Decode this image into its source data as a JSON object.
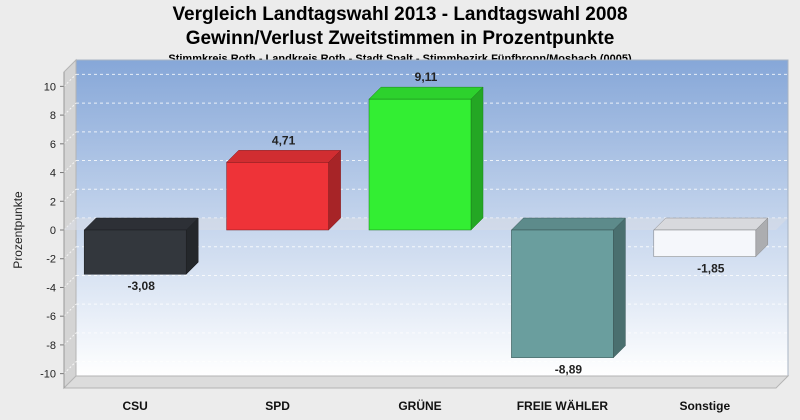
{
  "chart_data": {
    "type": "bar",
    "title": "Vergleich Landtagswahl 2013 - Landtagswahl 2008",
    "subtitle": "Gewinn/Verlust Zweitstimmen in Prozentpunkte",
    "subsubtitle": "Stimmkreis Roth - Landkreis Roth - Stadt Spalt - Stimmbezirk Fünfbronn/Mosbach (0005)",
    "ylabel": "Prozentpunkte",
    "xlabel": "",
    "ylim": [
      -11,
      11
    ],
    "yticks": [
      -10,
      -8,
      -6,
      -4,
      -2,
      0,
      2,
      4,
      6,
      8,
      10
    ],
    "grid": true,
    "categories": [
      "CSU",
      "SPD",
      "GRÜNE",
      "FREIE WÄHLER",
      "Sonstige"
    ],
    "values": [
      -3.08,
      4.71,
      9.11,
      -8.89,
      -1.85
    ],
    "value_labels": [
      "-3,08",
      "4,71",
      "9,11",
      "-8,89",
      "-1,85"
    ],
    "colors": [
      "#33373d",
      "#ee3338",
      "#33ee33",
      "#6a9e9e",
      "#f5f7fb"
    ]
  }
}
